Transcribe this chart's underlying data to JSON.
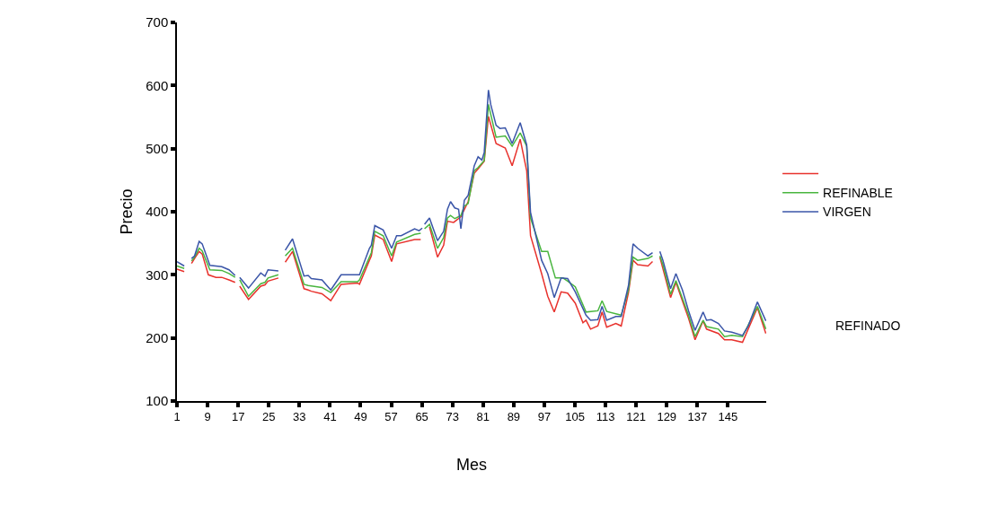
{
  "chart_data": {
    "type": "line",
    "xlabel": "Mes",
    "ylabel": "Precio",
    "xlim": [
      1,
      155
    ],
    "xticks": [
      1,
      9,
      17,
      25,
      33,
      41,
      49,
      57,
      65,
      73,
      81,
      89,
      97,
      105,
      113,
      121,
      129,
      137,
      145
    ],
    "ylim": [
      100,
      700
    ],
    "yticks": [
      100,
      200,
      300,
      400,
      500,
      600,
      700
    ],
    "legend": "right",
    "marker": "none",
    "line_style": "solid",
    "annotations": [
      "REFINADO"
    ],
    "series": [
      {
        "color": "#e8322d",
        "x": [
          1,
          2.9,
          3.5,
          4.8,
          5.6,
          6.8,
          7.6,
          9.2,
          11.2,
          12.7,
          14.6,
          16.2,
          16.8,
          17.4,
          19.7,
          22.9,
          24,
          24.8,
          27.5,
          28.5,
          29.3,
          31.2,
          34.2,
          35.3,
          36.1,
          38.9,
          41.2,
          43.9,
          48.2,
          48.7,
          51.3,
          51.8,
          52.7,
          54.9,
          57.1,
          58.4,
          63.1,
          64.7,
          65.4,
          67,
          69.1,
          70.7,
          71.7,
          73.3,
          75.2,
          77.1,
          78.7,
          79.7,
          81.3,
          82.4,
          84.4,
          86.8,
          88.6,
          90.7,
          92.4,
          93.4,
          96.3,
          97.9,
          99.6,
          101.4,
          103.1,
          105.1,
          107.1,
          107.9,
          109.1,
          111,
          112.1,
          113.3,
          115.7,
          117.1,
          119,
          120.2,
          121.4,
          124.1,
          125.3,
          126.2,
          127.2,
          130,
          131.4,
          134.7,
          136.4,
          138.5,
          139.4,
          142.5,
          144.1,
          146,
          148.8,
          152.7,
          154.9
        ],
        "values": [
          309,
          305,
          null,
          318,
          326,
          337,
          333,
          300,
          296,
          296,
          292,
          288,
          null,
          282,
          261,
          282,
          284,
          290,
          295,
          null,
          320,
          337,
          278,
          276,
          274,
          270,
          259,
          285,
          287,
          285,
          323,
          330,
          363,
          356,
          321,
          349,
          356,
          356,
          null,
          376,
          328,
          347,
          385,
          383,
          392,
          416,
          461,
          468,
          480,
          551,
          508,
          501,
          473,
          515,
          465,
          362,
          302,
          266,
          241,
          273,
          271,
          255,
          224,
          228,
          214,
          219,
          241,
          217,
          223,
          219,
          272,
          323,
          316,
          314,
          321,
          null,
          328,
          264,
          288,
          231,
          197,
          227,
          214,
          207,
          197,
          197,
          193,
          248,
          207
        ]
      },
      {
        "name": "REFINABLE",
        "color": "#49b53f",
        "x": [
          1,
          2.9,
          3.5,
          4.8,
          5.6,
          6.8,
          7.6,
          9.6,
          12.7,
          14.6,
          16.2,
          16.8,
          17.4,
          19.7,
          22.9,
          24,
          24.8,
          27.5,
          28.5,
          29.3,
          31.2,
          34.2,
          35.3,
          38.9,
          41.2,
          43.9,
          48.2,
          48.7,
          51.3,
          51.8,
          52.7,
          54.9,
          57.1,
          58.4,
          63.1,
          64.7,
          65.4,
          65.7,
          67,
          69.1,
          70.7,
          71.7,
          72.5,
          73.6,
          75.2,
          76.1,
          77.1,
          78.7,
          79.7,
          81.3,
          82.4,
          84.4,
          86.8,
          88.6,
          90.7,
          92.4,
          93.4,
          96.3,
          97.9,
          99.9,
          101.9,
          103.1,
          105.1,
          107.9,
          111,
          112.1,
          113.3,
          117.1,
          119,
          120.2,
          121.4,
          124.1,
          125.3,
          126.2,
          127.2,
          128,
          130,
          131.4,
          134.7,
          136.4,
          138.5,
          139.4,
          142.5,
          144.1,
          146,
          148.8,
          152.7,
          154.9
        ],
        "values": [
          314,
          310,
          null,
          322,
          328,
          342,
          338,
          308,
          307,
          302,
          296,
          null,
          292,
          266,
          286,
          288,
          295,
          300,
          null,
          330,
          342,
          285,
          283,
          280,
          272,
          289,
          289,
          292,
          328,
          335,
          369,
          362,
          330,
          352,
          364,
          366,
          null,
          373,
          380,
          342,
          359,
          390,
          394,
          389,
          394,
          409,
          413,
          465,
          470,
          481,
          570,
          518,
          520,
          504,
          525,
          504,
          390,
          337,
          337,
          295,
          295,
          290,
          281,
          241,
          243,
          259,
          242,
          236,
          276,
          328,
          323,
          326,
          330,
          null,
          330,
          316,
          269,
          291,
          236,
          202,
          228,
          218,
          214,
          202,
          204,
          202,
          250,
          214
        ]
      },
      {
        "name": "VIRGEN",
        "color": "#3a55a8",
        "x": [
          1,
          2.9,
          3.5,
          4.8,
          5.6,
          6.8,
          7.6,
          9.6,
          12.7,
          14.6,
          16.2,
          16.8,
          17.4,
          19.7,
          22.9,
          24,
          24.8,
          27.5,
          28.5,
          29.3,
          31.2,
          34.2,
          35.3,
          36.1,
          38.9,
          41.2,
          43.9,
          48.2,
          48.7,
          51.3,
          51.8,
          52.7,
          54.9,
          57.1,
          58.4,
          59.6,
          63.1,
          64.3,
          65.1,
          65.4,
          65.7,
          67,
          69.1,
          70.7,
          71.7,
          72.5,
          73.6,
          74.6,
          75.2,
          76.1,
          77.1,
          78.7,
          79.7,
          80.7,
          81.3,
          82.4,
          83,
          84.4,
          85.4,
          86.8,
          88.6,
          90.7,
          92.4,
          93.4,
          94.8,
          96.3,
          97.9,
          99.6,
          101.4,
          103.1,
          105.1,
          107.9,
          109.1,
          111,
          112.1,
          113.3,
          115.7,
          117.1,
          119,
          120.2,
          121.4,
          124.1,
          125.3,
          126.2,
          127.2,
          128,
          130,
          131.4,
          133.1,
          134.7,
          136.4,
          138.5,
          139.4,
          140.6,
          142.5,
          144.1,
          146,
          148.8,
          150.3,
          152.7,
          154.9
        ],
        "values": [
          321,
          314,
          null,
          326,
          330,
          353,
          349,
          315,
          313,
          308,
          299,
          null,
          296,
          279,
          303,
          298,
          308,
          306,
          null,
          339,
          357,
          298,
          299,
          294,
          292,
          276,
          300,
          300,
          300,
          342,
          347,
          378,
          371,
          342,
          362,
          362,
          373,
          370,
          374,
          null,
          380,
          390,
          354,
          369,
          404,
          416,
          406,
          404,
          373,
          418,
          426,
          473,
          487,
          482,
          494,
          593,
          570,
          537,
          532,
          533,
          508,
          541,
          506,
          399,
          362,
          323,
          302,
          264,
          295,
          294,
          273,
          236,
          228,
          229,
          250,
          228,
          234,
          234,
          283,
          349,
          342,
          330,
          335,
          null,
          337,
          323,
          278,
          302,
          276,
          243,
          212,
          241,
          228,
          229,
          223,
          211,
          209,
          204,
          219,
          257,
          227
        ]
      }
    ]
  }
}
